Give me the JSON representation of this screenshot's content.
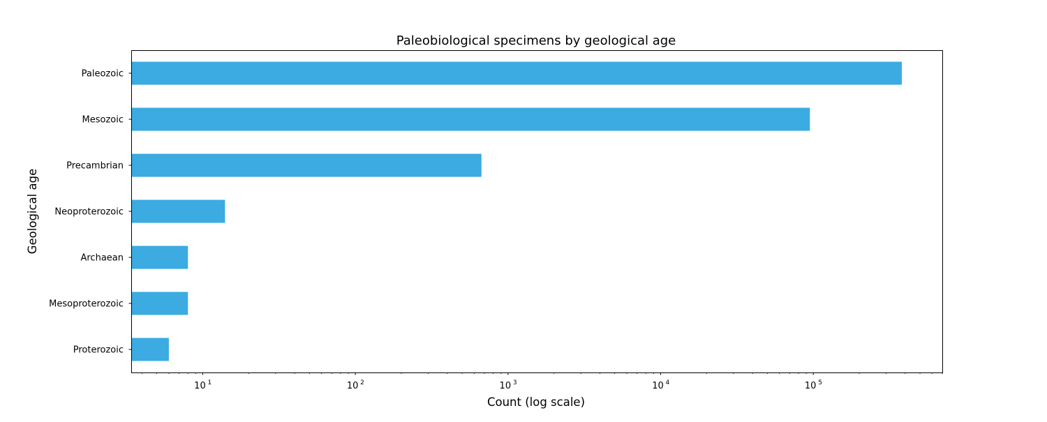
{
  "chart_data": {
    "type": "bar",
    "orientation": "horizontal",
    "title": "Paleobiological specimens by geological age",
    "xlabel": "Count (log scale)",
    "ylabel": "Geological age",
    "x_scale": "log",
    "xlim": [
      3.4,
      700000
    ],
    "categories": [
      "Paleozoic",
      "Mesozoic",
      "Precambrian",
      "Neoproterozoic",
      "Archaean",
      "Mesoproterozoic",
      "Proterozoic"
    ],
    "values": [
      380000,
      95000,
      670,
      14,
      8,
      8,
      6
    ],
    "x_ticks": [
      {
        "value": 10,
        "base": "10",
        "exp": "1"
      },
      {
        "value": 100,
        "base": "10",
        "exp": "2"
      },
      {
        "value": 1000,
        "base": "10",
        "exp": "3"
      },
      {
        "value": 10000,
        "base": "10",
        "exp": "4"
      },
      {
        "value": 100000,
        "base": "10",
        "exp": "5"
      }
    ],
    "bar_color": "#3babe1",
    "grid": false,
    "legend": false
  }
}
